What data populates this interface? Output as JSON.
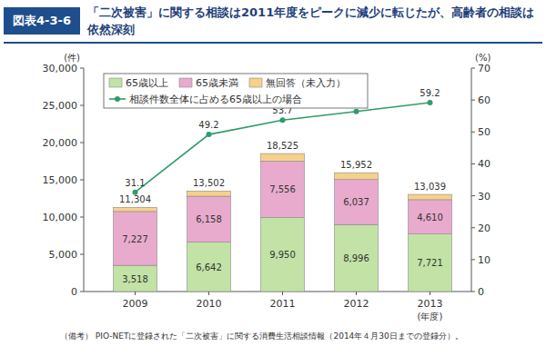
{
  "chart_data": {
    "type": "bar",
    "figure_label": "図表4-3-6",
    "title": "「二次被害」に関する相談は2011年度をピークに減少に転じたが、高齢者の相談は依然深刻",
    "y_label": "(件)",
    "y2_label": "(%)",
    "x_label": "(年度)",
    "note": "（備考） PIO-NETに登録された「二次被害」に関する消費生活相談情報（2014年４月30日までの登録分）。",
    "stacked": true,
    "legend": "upper-left",
    "grid": false,
    "categories": [
      "2009",
      "2010",
      "2011",
      "2012",
      "2013"
    ],
    "totals": [
      11304,
      13502,
      18525,
      15952,
      13039
    ],
    "total_labels": [
      "11,304",
      "13,502",
      "18,525",
      "15,952",
      "13,039"
    ],
    "ylim": [
      0,
      30000
    ],
    "yticks": [
      0,
      {
        "value": 5000,
        "label": "5,000"
      },
      {
        "value": 10000,
        "label": "10,000"
      },
      {
        "value": 15000,
        "label": "15,000"
      },
      {
        "value": 20000,
        "label": "20,000"
      },
      {
        "value": 25000,
        "label": "25,000"
      },
      {
        "value": 30000,
        "label": "30,000"
      }
    ],
    "y2lim": [
      0,
      70
    ],
    "y2ticks": [
      0,
      10,
      20,
      30,
      40,
      50,
      60,
      70
    ],
    "series": [
      {
        "name": "65歳以上",
        "type": "bar",
        "color": "#c2e2a6",
        "data_labels": true,
        "values": [
          3518,
          6642,
          9950,
          8996,
          7721
        ],
        "value_labels": [
          "3,518",
          "6,642",
          "9,950",
          "8,996",
          "7,721"
        ]
      },
      {
        "name": "65歳未満",
        "type": "bar",
        "color": "#e8abcd",
        "data_labels": true,
        "values": [
          7227,
          6158,
          7556,
          6037,
          4610
        ],
        "value_labels": [
          "7,227",
          "6,158",
          "7,556",
          "6,037",
          "4,610"
        ]
      },
      {
        "name": "無回答（未入力）",
        "type": "bar",
        "color": "#f5d18c",
        "data_labels": false,
        "values": [
          559,
          702,
          1019,
          919,
          708
        ]
      },
      {
        "name": "相談件数全体に占める65歳以上の場合",
        "type": "line",
        "axis": "y2",
        "color": "#2f9c6a",
        "marker": "circle",
        "line_style": "solid",
        "data_labels": true,
        "values": [
          31.1,
          49.2,
          53.7,
          56.4,
          59.2
        ]
      }
    ]
  }
}
